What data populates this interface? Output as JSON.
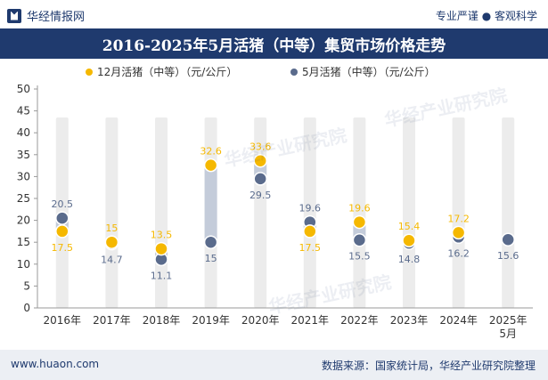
{
  "header": {
    "brand_name": "华经情报网",
    "tagline": "专业严谨 ● 客观科学"
  },
  "title": "2016-2025年5月活猪（中等）集贸市场价格走势",
  "watermark_text": "华经产业研究院",
  "footer": {
    "website": "www.huaon.com",
    "source": "数据来源：国家统计局，华经产业研究院整理"
  },
  "colors": {
    "navy": "#1f3a6e",
    "series_dec": "#f5b800",
    "series_may": "#5a6b8c",
    "band": "#ececec",
    "connector": "#c4ccda"
  },
  "chart_data": {
    "type": "dot",
    "categories": [
      "2016年",
      "2017年",
      "2018年",
      "2019年",
      "2020年",
      "2021年",
      "2022年",
      "2023年",
      "2024年",
      "2025年\n5月"
    ],
    "series": [
      {
        "name": "12月活猪（中等）（元/公斤）",
        "values": [
          17.5,
          15,
          13.5,
          32.6,
          33.6,
          17.5,
          19.6,
          15.4,
          17.2,
          null
        ],
        "labels": [
          "17.5",
          "15",
          "13.5",
          "32.6",
          "33.6",
          "17.5",
          "19.6",
          "15.4",
          "17.2",
          ""
        ]
      },
      {
        "name": "5月活猪（中等）（元/公斤）",
        "values": [
          20.5,
          14.7,
          11.1,
          15,
          29.5,
          19.6,
          15.5,
          14.8,
          16.2,
          15.6
        ],
        "labels": [
          "20.5",
          "14.7",
          "11.1",
          "15",
          "29.5",
          "19.6",
          "15.5",
          "14.8",
          "16.2",
          "15.6"
        ]
      }
    ],
    "yticks": [
      0,
      5,
      10,
      15,
      20,
      25,
      30,
      35,
      40,
      45,
      50
    ],
    "ylim": [
      0,
      50
    ],
    "legend_position": "top-center"
  }
}
